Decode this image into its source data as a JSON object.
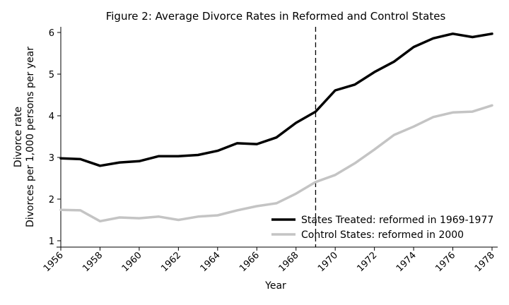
{
  "chart_data": {
    "type": "line",
    "title": "Figure 2: Average Divorce Rates in Reformed and Control States",
    "xlabel": "Year",
    "ylabel_lines": [
      "Divorce rate",
      "Divorces per 1,000 persons per year"
    ],
    "xlim": [
      1956,
      1978
    ],
    "ylim": [
      1,
      6
    ],
    "x_ticks": [
      "1956",
      "1958",
      "1960",
      "1962",
      "1964",
      "1966",
      "1968",
      "1970",
      "1972",
      "1974",
      "1976",
      "1978"
    ],
    "y_ticks": [
      "1",
      "2",
      "3",
      "4",
      "5",
      "6"
    ],
    "grid": false,
    "legend_position": "bottom-right",
    "reference_line": {
      "x": 1969,
      "style": "dashed"
    },
    "x": [
      1956,
      1957,
      1958,
      1959,
      1960,
      1961,
      1962,
      1963,
      1964,
      1965,
      1966,
      1967,
      1968,
      1969,
      1970,
      1971,
      1972,
      1973,
      1974,
      1975,
      1976,
      1977,
      1978
    ],
    "series": [
      {
        "name": "States Treated: reformed in 1969-1977",
        "color": "#000000",
        "values": [
          2.98,
          2.96,
          2.8,
          2.88,
          2.91,
          3.03,
          3.03,
          3.06,
          3.16,
          3.34,
          3.32,
          3.48,
          3.83,
          4.1,
          4.61,
          4.75,
          5.05,
          5.3,
          5.65,
          5.86,
          5.97,
          5.89,
          5.97
        ]
      },
      {
        "name": "Control States: reformed in 2000",
        "color": "#c4c4c4",
        "values": [
          1.74,
          1.73,
          1.47,
          1.56,
          1.54,
          1.58,
          1.5,
          1.58,
          1.61,
          1.73,
          1.83,
          1.9,
          2.13,
          2.41,
          2.58,
          2.86,
          3.19,
          3.54,
          3.74,
          3.97,
          4.08,
          4.1,
          4.25
        ]
      }
    ]
  }
}
